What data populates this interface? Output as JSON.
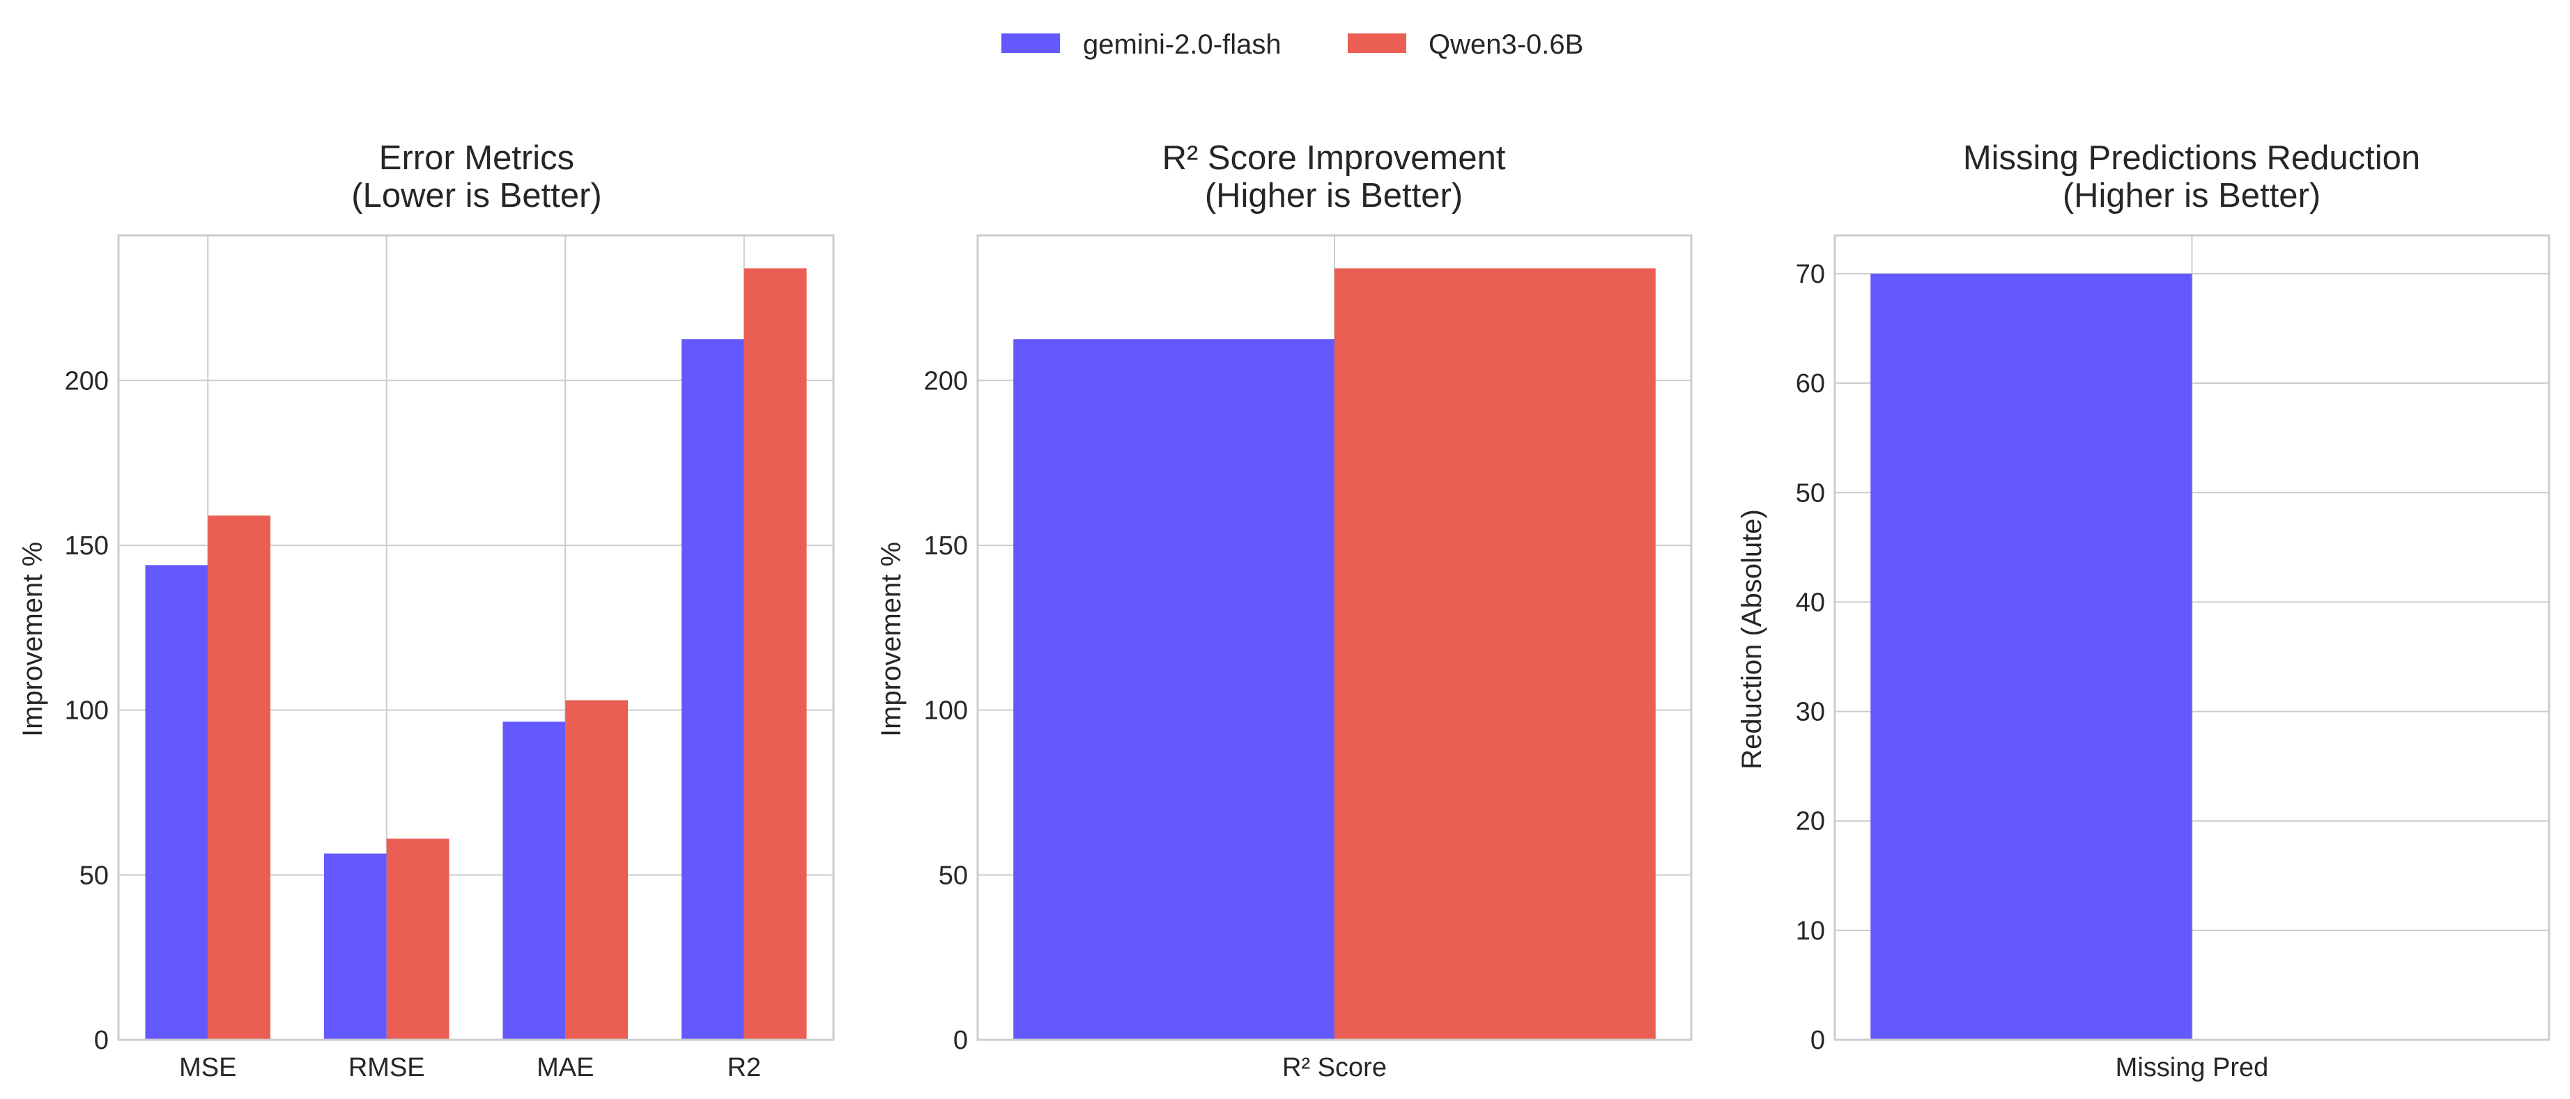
{
  "legend": {
    "items": [
      {
        "label": "gemini-2.0-flash",
        "color": "#6459FF"
      },
      {
        "label": "Qwen3-0.6B",
        "color": "#EA5E53"
      }
    ]
  },
  "chart_data": [
    {
      "type": "bar",
      "title_line1": "Error Metrics",
      "title_line2": "(Lower is Better)",
      "xlabel": "",
      "ylabel": "Improvement %",
      "categories": [
        "MSE",
        "RMSE",
        "MAE",
        "R2"
      ],
      "ylim": [
        0,
        244
      ],
      "yticks": [
        0,
        50,
        100,
        150,
        200
      ],
      "grid": true,
      "series": [
        {
          "name": "gemini-2.0-flash",
          "color": "#6459FF",
          "values": [
            144,
            56.5,
            96.5,
            212.5
          ]
        },
        {
          "name": "Qwen3-0.6B",
          "color": "#EA5E53",
          "values": [
            159,
            61,
            103,
            234
          ]
        }
      ]
    },
    {
      "type": "bar",
      "title_line1": "R² Score Improvement",
      "title_line2": "(Higher is Better)",
      "xlabel": "",
      "ylabel": "Improvement %",
      "categories": [
        "R² Score"
      ],
      "ylim": [
        0,
        244
      ],
      "yticks": [
        0,
        50,
        100,
        150,
        200
      ],
      "grid": true,
      "series": [
        {
          "name": "gemini-2.0-flash",
          "color": "#6459FF",
          "values": [
            212.5
          ]
        },
        {
          "name": "Qwen3-0.6B",
          "color": "#EA5E53",
          "values": [
            234
          ]
        }
      ]
    },
    {
      "type": "bar",
      "title_line1": "Missing Predictions Reduction",
      "title_line2": "(Higher is Better)",
      "xlabel": "",
      "ylabel": "Reduction (Absolute)",
      "categories": [
        "Missing Pred"
      ],
      "ylim": [
        0,
        73.5
      ],
      "yticks": [
        0,
        10,
        20,
        30,
        40,
        50,
        60,
        70
      ],
      "grid": true,
      "series": [
        {
          "name": "gemini-2.0-flash",
          "color": "#6459FF",
          "values": [
            70
          ]
        },
        {
          "name": "Qwen3-0.6B",
          "color": "#EA5E53",
          "values": [
            0
          ]
        }
      ]
    }
  ]
}
